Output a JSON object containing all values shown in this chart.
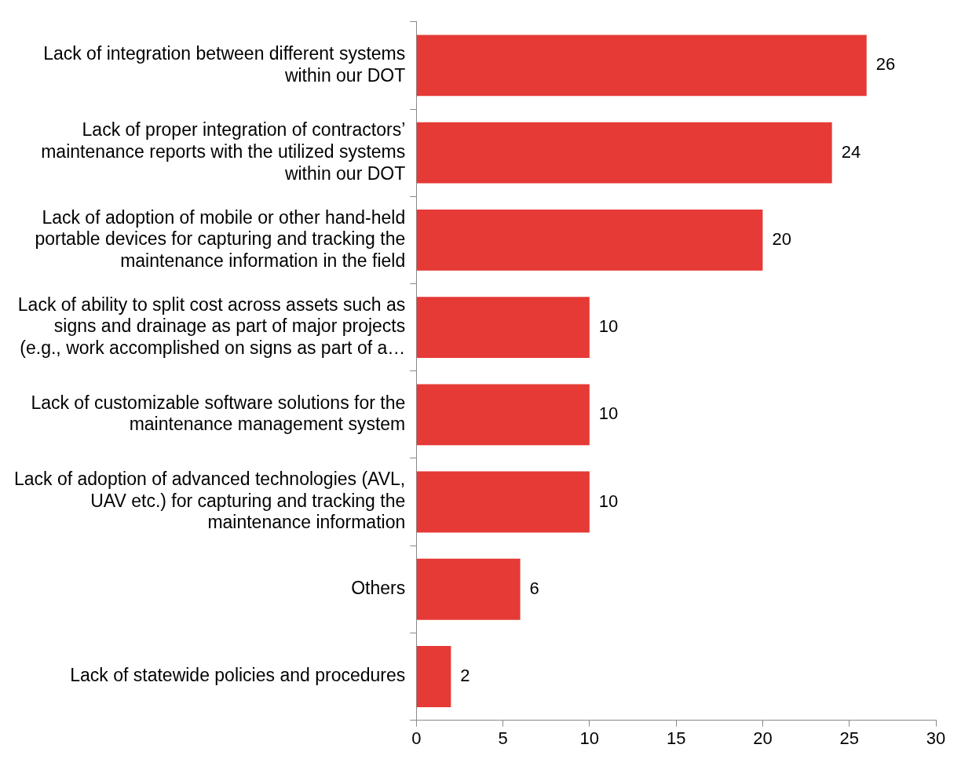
{
  "chart_data": {
    "type": "bar",
    "orientation": "horizontal",
    "categories": [
      "Lack of integration between different systems within our DOT",
      "Lack of proper integration of contractors’ maintenance reports with the utilized systems within our DOT",
      "Lack of adoption of mobile or other hand-held portable devices for capturing and tracking the maintenance information in the field",
      "Lack of ability to split cost across assets such as signs and drainage as part of major projects (e.g., work accomplished on signs as part of a…",
      "Lack of customizable software solutions for the maintenance management system",
      "Lack of adoption of advanced technologies (AVL, UAV etc.) for capturing and tracking the maintenance information",
      "Others",
      "Lack of statewide policies and procedures"
    ],
    "values": [
      26,
      24,
      20,
      10,
      10,
      10,
      6,
      2
    ],
    "color": "#e53a35",
    "xlim": [
      0,
      30
    ],
    "xticks": [
      0,
      5,
      10,
      15,
      20,
      25,
      30
    ],
    "data_labels": true,
    "grid": false,
    "legend": false
  }
}
